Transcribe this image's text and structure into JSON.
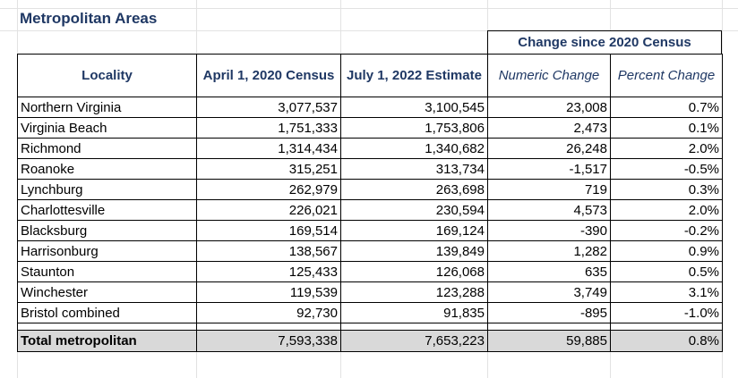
{
  "title": "Metropolitan Areas",
  "group_header": "Change since 2020 Census",
  "headers": {
    "locality": "Locality",
    "census_2020": "April 1, 2020 Census",
    "estimate_2022": "July 1, 2022 Estimate",
    "numeric_change": "Numeric Change",
    "percent_change": "Percent Change"
  },
  "rows": [
    {
      "locality": "Northern Virginia",
      "census_2020": "3,077,537",
      "estimate_2022": "3,100,545",
      "numeric_change": "23,008",
      "percent_change": "0.7%"
    },
    {
      "locality": "Virginia Beach",
      "census_2020": "1,751,333",
      "estimate_2022": "1,753,806",
      "numeric_change": "2,473",
      "percent_change": "0.1%"
    },
    {
      "locality": "Richmond",
      "census_2020": "1,314,434",
      "estimate_2022": "1,340,682",
      "numeric_change": "26,248",
      "percent_change": "2.0%"
    },
    {
      "locality": "Roanoke",
      "census_2020": "315,251",
      "estimate_2022": "313,734",
      "numeric_change": "-1,517",
      "percent_change": "-0.5%"
    },
    {
      "locality": "Lynchburg",
      "census_2020": "262,979",
      "estimate_2022": "263,698",
      "numeric_change": "719",
      "percent_change": "0.3%"
    },
    {
      "locality": "Charlottesville",
      "census_2020": "226,021",
      "estimate_2022": "230,594",
      "numeric_change": "4,573",
      "percent_change": "2.0%"
    },
    {
      "locality": "Blacksburg",
      "census_2020": "169,514",
      "estimate_2022": "169,124",
      "numeric_change": "-390",
      "percent_change": "-0.2%"
    },
    {
      "locality": "Harrisonburg",
      "census_2020": "138,567",
      "estimate_2022": "139,849",
      "numeric_change": "1,282",
      "percent_change": "0.9%"
    },
    {
      "locality": "Staunton",
      "census_2020": "125,433",
      "estimate_2022": "126,068",
      "numeric_change": "635",
      "percent_change": "0.5%"
    },
    {
      "locality": "Winchester",
      "census_2020": "119,539",
      "estimate_2022": "123,288",
      "numeric_change": "3,749",
      "percent_change": "3.1%"
    },
    {
      "locality": "Bristol combined",
      "census_2020": "92,730",
      "estimate_2022": "91,835",
      "numeric_change": "-895",
      "percent_change": "-1.0%"
    }
  ],
  "total": {
    "locality": "Total metropolitan",
    "census_2020": "7,593,338",
    "estimate_2022": "7,653,223",
    "numeric_change": "59,885",
    "percent_change": "0.8%"
  },
  "colors": {
    "header_text": "#1f3864",
    "total_fill": "#d9d9d9",
    "gridline": "#e2e2e2"
  }
}
